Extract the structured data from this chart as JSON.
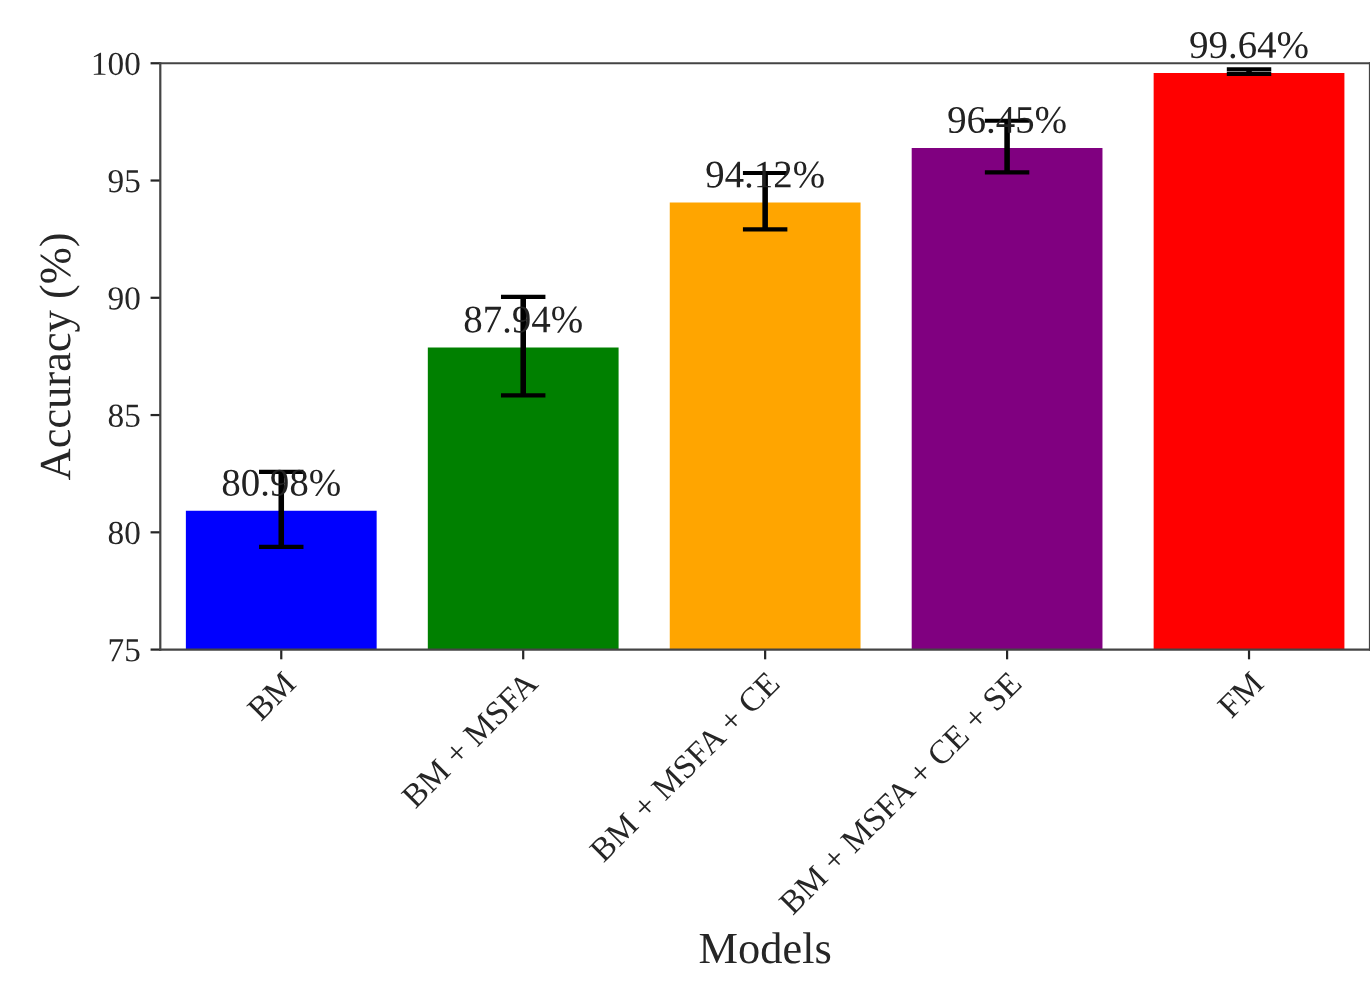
{
  "chart_data": {
    "type": "bar",
    "xlabel": "Models",
    "ylabel": "Accuracy (%)",
    "categories": [
      "BM",
      "BM + MSFA",
      "BM + MSFA + CE",
      "BM + MSFA + CE + SE",
      "FM"
    ],
    "values": [
      80.98,
      87.94,
      94.12,
      96.45,
      99.64
    ],
    "colors": [
      "#0000ff",
      "#008000",
      "#ffa500",
      "#800080",
      "#ff0000"
    ],
    "errors": [
      1.6,
      2.1,
      1.2,
      1.1,
      0.1
    ],
    "value_labels": [
      "80.98%",
      "87.94%",
      "94.12%",
      "96.45%",
      "99.64%"
    ],
    "ylim": [
      75,
      100
    ],
    "yticks": [
      75,
      80,
      85,
      90,
      95,
      100
    ],
    "grid": false
  }
}
